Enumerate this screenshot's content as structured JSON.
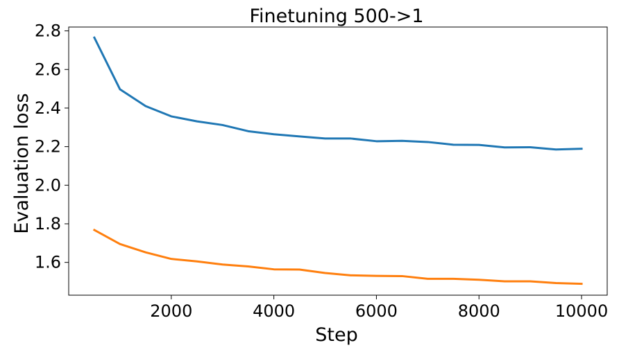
{
  "chart_data": {
    "type": "line",
    "title": "Finetuning 500->1",
    "xlabel": "Step",
    "ylabel": "Evaluation loss",
    "xlim": [
      0,
      10500
    ],
    "ylim": [
      1.43,
      2.82
    ],
    "xticks": [
      2000,
      4000,
      6000,
      8000,
      10000
    ],
    "yticks": [
      1.6,
      1.8,
      2.0,
      2.2,
      2.4,
      2.6,
      2.8
    ],
    "grid": false,
    "x": [
      500,
      1000,
      1500,
      2000,
      2500,
      3000,
      3500,
      4000,
      4500,
      5000,
      5500,
      6000,
      6500,
      7000,
      7500,
      8000,
      8500,
      9000,
      9500,
      10000
    ],
    "series": [
      {
        "color": "#1f77b4",
        "values": [
          2.765,
          2.497,
          2.41,
          2.357,
          2.331,
          2.312,
          2.28,
          2.264,
          2.253,
          2.242,
          2.242,
          2.228,
          2.23,
          2.224,
          2.21,
          2.209,
          2.196,
          2.197,
          2.185,
          2.189
        ]
      },
      {
        "color": "#ff7f0e",
        "values": [
          1.768,
          1.695,
          1.652,
          1.618,
          1.605,
          1.589,
          1.579,
          1.564,
          1.563,
          1.545,
          1.533,
          1.53,
          1.529,
          1.515,
          1.515,
          1.51,
          1.502,
          1.502,
          1.493,
          1.489
        ]
      }
    ]
  }
}
